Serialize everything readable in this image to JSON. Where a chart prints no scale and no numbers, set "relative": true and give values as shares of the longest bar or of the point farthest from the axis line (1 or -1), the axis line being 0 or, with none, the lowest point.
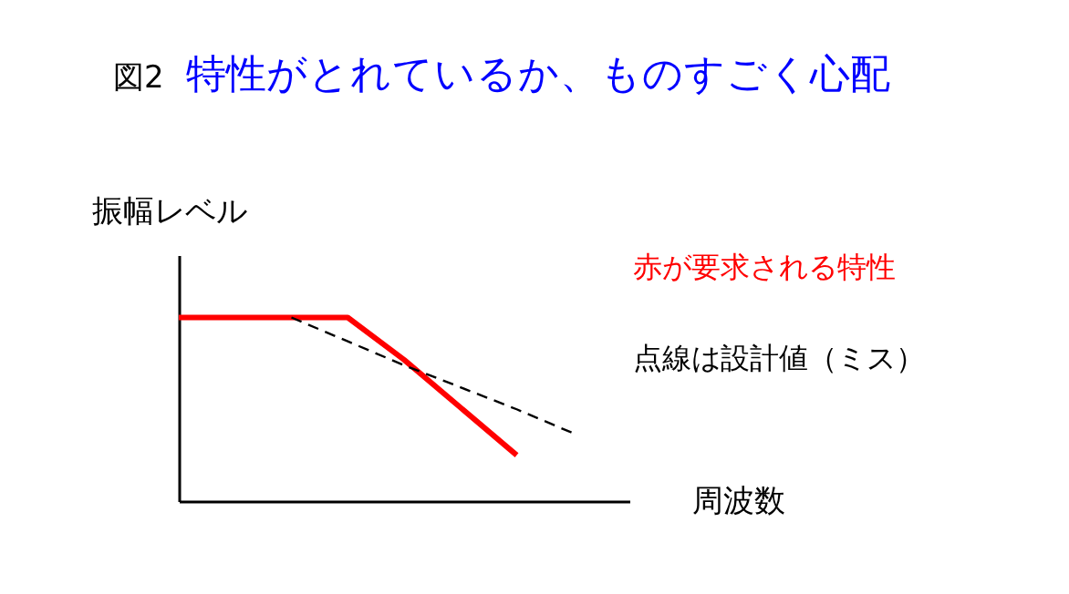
{
  "chart_data": {
    "type": "line",
    "title": "図2　特性がとれているか、ものすごく心配",
    "xlabel": "周波数",
    "ylabel": "振幅レベル",
    "relative": true,
    "tick_labels": false,
    "categories": [
      null,
      null,
      null,
      null,
      null,
      null,
      null,
      null,
      null
    ],
    "series": [
      {
        "name": "赤が要求される特性",
        "color": "#ff0000",
        "line_style": "solid",
        "values": [
          1,
          1,
          1,
          1,
          0.77,
          0.51,
          0.25,
          null,
          null
        ]
      },
      {
        "name": "点線は設計値（ミス）",
        "color": "#000000",
        "line_style": "dashed",
        "values": [
          null,
          null,
          1,
          0.87,
          0.74,
          0.62,
          0.5,
          0.37,
          null
        ]
      }
    ]
  }
}
